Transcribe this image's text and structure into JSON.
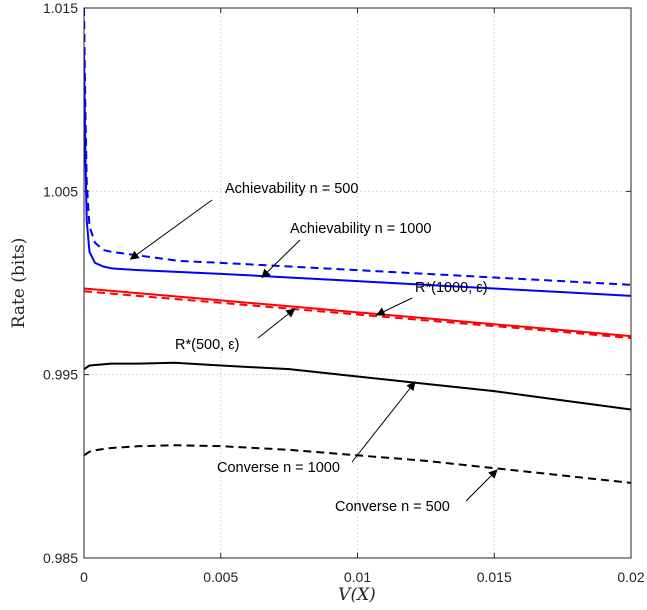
{
  "chart_data": {
    "type": "line",
    "title": "",
    "xlabel": "V(X)",
    "ylabel": "Rate (bits)",
    "xlim": [
      0,
      0.02
    ],
    "ylim": [
      0.985,
      1.015
    ],
    "grid": true,
    "x_ticks": [
      0,
      0.005,
      0.01,
      0.015,
      0.02
    ],
    "x_tick_labels": [
      "0",
      "0.005",
      "0.01",
      "0.015",
      "0.02"
    ],
    "y_ticks": [
      0.985,
      0.995,
      1.005,
      1.015
    ],
    "y_tick_labels": [
      "0.985",
      "0.995",
      "1.005",
      "1.015"
    ],
    "series": [
      {
        "name": "Achievability n = 500",
        "color": "#0000ff",
        "dash": "dashed",
        "x": [
          0.0,
          5e-05,
          0.0001,
          0.0002,
          0.0004,
          0.0007,
          0.001,
          0.002,
          0.0035,
          0.005,
          0.0075,
          0.01,
          0.0125,
          0.015,
          0.0175,
          0.02
        ],
        "y": [
          1.015,
          1.0095,
          1.0055,
          1.0031,
          1.0022,
          1.0018,
          1.0017,
          1.0015,
          1.0012,
          1.0011,
          1.0009,
          1.0007,
          1.0005,
          1.0003,
          1.0001,
          0.9999
        ]
      },
      {
        "name": "Achievability n = 1000",
        "color": "#0000ff",
        "dash": "solid",
        "x": [
          0.0,
          5e-05,
          0.0001,
          0.0002,
          0.0004,
          0.0007,
          0.001,
          0.002,
          0.0035,
          0.005,
          0.0075,
          0.01,
          0.0125,
          0.015,
          0.0175,
          0.02
        ],
        "y": [
          1.0125,
          1.007,
          1.0034,
          1.0017,
          1.0011,
          1.0009,
          1.0008,
          1.0007,
          1.0006,
          1.0005,
          1.0003,
          1.0001,
          0.9999,
          0.9997,
          0.9995,
          0.9993
        ]
      },
      {
        "name": "R*(1000, ε)",
        "color": "#ff0000",
        "dash": "solid",
        "x": [
          0.0,
          0.0025,
          0.005,
          0.0075,
          0.01,
          0.0125,
          0.015,
          0.0175,
          0.02
        ],
        "y": [
          0.9997,
          0.99938,
          0.99905,
          0.99873,
          0.9984,
          0.99808,
          0.99775,
          0.99743,
          0.9971
        ]
      },
      {
        "name": "R*(500, ε)",
        "color": "#ff0000",
        "dash": "dashed",
        "x": [
          0.0,
          0.0025,
          0.005,
          0.0075,
          0.01,
          0.0125,
          0.015,
          0.0175,
          0.02
        ],
        "y": [
          0.99955,
          0.99923,
          0.99892,
          0.9986,
          0.99828,
          0.99796,
          0.99765,
          0.99733,
          0.997
        ]
      },
      {
        "name": "Converse n = 1000",
        "color": "#000000",
        "dash": "solid",
        "x": [
          0.0,
          0.0002,
          0.001,
          0.002,
          0.0033,
          0.005,
          0.0075,
          0.01,
          0.0125,
          0.015,
          0.0175,
          0.02
        ],
        "y": [
          0.9953,
          0.9955,
          0.9956,
          0.9956,
          0.99565,
          0.9955,
          0.9953,
          0.9949,
          0.9945,
          0.9941,
          0.9936,
          0.9931
        ]
      },
      {
        "name": "Converse n = 500",
        "color": "#000000",
        "dash": "dashed",
        "x": [
          0.0,
          0.0002,
          0.0005,
          0.001,
          0.002,
          0.0033,
          0.005,
          0.0075,
          0.01,
          0.0125,
          0.015,
          0.0175,
          0.02
        ],
        "y": [
          0.9906,
          0.9908,
          0.9909,
          0.991,
          0.9911,
          0.99115,
          0.9911,
          0.9909,
          0.9906,
          0.9903,
          0.9899,
          0.9895,
          0.9891
        ]
      }
    ],
    "annotations": [
      {
        "text": "Achievability n = 500",
        "arrow_to": [
          0.0017,
          1.0013
        ]
      },
      {
        "text": "Achievability n = 1000",
        "arrow_to": [
          0.0065,
          1.0003
        ]
      },
      {
        "text": "R*(1000, ε)",
        "arrow_to": [
          0.0107,
          0.99825
        ]
      },
      {
        "text": "R*(500, ε)",
        "arrow_to": [
          0.0077,
          0.99858
        ]
      },
      {
        "text": "Converse n = 1000",
        "arrow_to": [
          0.0121,
          0.9946
        ]
      },
      {
        "text": "Converse n = 500",
        "arrow_to": [
          0.0151,
          0.9898
        ]
      }
    ]
  }
}
